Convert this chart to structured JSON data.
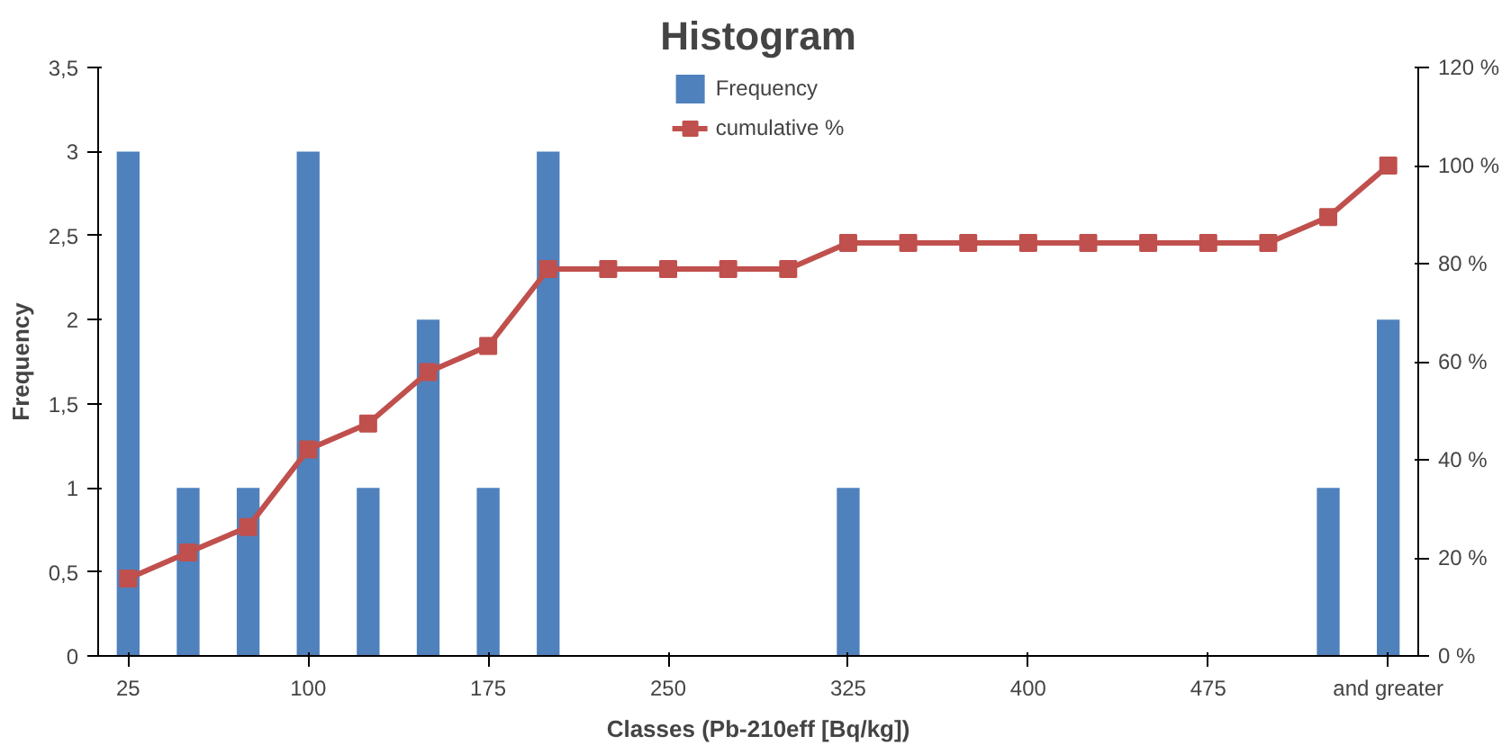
{
  "chart_data": {
    "type": "bar",
    "title": "Histogram",
    "xlabel": "Classes (Pb-210eff [Bq/kg])",
    "ylabel": "Frequency",
    "categories": [
      "25",
      null,
      null,
      "100",
      null,
      null,
      "175",
      null,
      null,
      "250",
      null,
      null,
      "325",
      null,
      null,
      "400",
      null,
      null,
      "475",
      null,
      null,
      "and greater"
    ],
    "series": [
      {
        "name": "Frequency",
        "color": "#4f81bd",
        "values": [
          3,
          1,
          1,
          3,
          1,
          2,
          1,
          3,
          0,
          0,
          0,
          0,
          1,
          0,
          0,
          0,
          0,
          0,
          0,
          0,
          1,
          2
        ]
      },
      {
        "name": "cumulative %",
        "type": "line",
        "axis": "y2",
        "color": "#c0504d",
        "marker": "square",
        "values": [
          15.8,
          21.1,
          26.3,
          42.1,
          47.4,
          57.9,
          63.2,
          78.9,
          78.9,
          78.9,
          78.9,
          78.9,
          84.2,
          84.2,
          84.2,
          84.2,
          84.2,
          84.2,
          84.2,
          84.2,
          89.5,
          100
        ]
      }
    ],
    "ylim": [
      0,
      3.5
    ],
    "yticks": [
      0,
      {
        "value": 0.5,
        "label": "0,5"
      },
      1,
      {
        "value": 1.5,
        "label": "1,5"
      },
      2,
      {
        "value": 2.5,
        "label": "2,5"
      },
      3,
      {
        "value": 3.5,
        "label": "3,5"
      }
    ],
    "y2lim": [
      0,
      120
    ],
    "y2ticks": [
      {
        "value": 0,
        "label": "0 %"
      },
      {
        "value": 20,
        "label": "20 %"
      },
      {
        "value": 40,
        "label": "40 %"
      },
      {
        "value": 60,
        "label": "60 %"
      },
      {
        "value": 80,
        "label": "80 %"
      },
      {
        "value": 100,
        "label": "100 %"
      },
      {
        "value": 120,
        "label": "120 %"
      }
    ],
    "grid": false,
    "legend": "top"
  }
}
